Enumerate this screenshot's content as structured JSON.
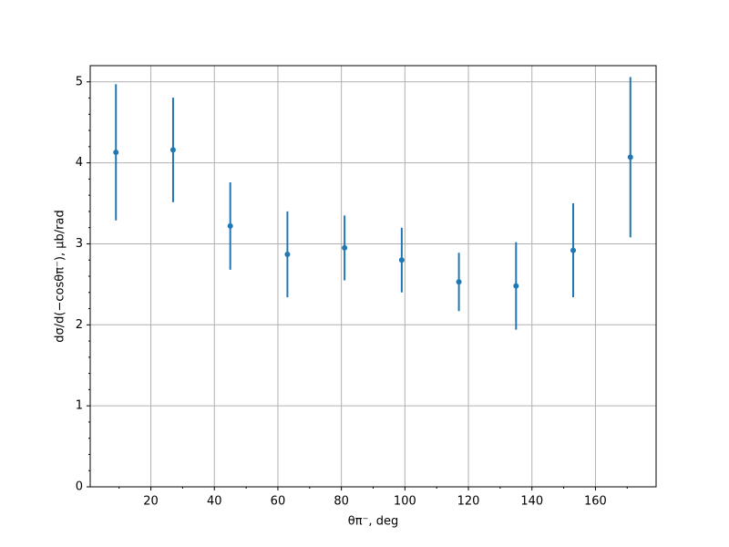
{
  "chart_data": {
    "type": "errorbar",
    "x_label": "θπ⁻, deg",
    "y_label": "dσ/d(−cosθπ⁻), μb/rad",
    "x": [
      9,
      27,
      45,
      63,
      81,
      99,
      117,
      135,
      153,
      171
    ],
    "series": [
      {
        "color": "#1f77b4",
        "values": [
          4.13,
          4.16,
          3.22,
          2.87,
          2.95,
          2.8,
          2.53,
          2.48,
          2.92,
          4.07
        ],
        "errors": [
          0.84,
          0.645,
          0.54,
          0.53,
          0.4,
          0.4,
          0.36,
          0.54,
          0.58,
          0.99
        ]
      }
    ],
    "xlim": [
      0.9,
      179.1
    ],
    "ylim": [
      0,
      5.2
    ],
    "xticks": [
      20,
      40,
      60,
      80,
      100,
      120,
      140,
      160
    ],
    "yticks": [
      0,
      1,
      2,
      3,
      4,
      5
    ],
    "xminorticks": [
      10,
      30,
      50,
      70,
      90,
      110,
      130,
      150,
      170
    ],
    "yminorticks": [
      0.2,
      0.4,
      0.6,
      0.8,
      1.2,
      1.4,
      1.6,
      1.8,
      2.2,
      2.4,
      2.6,
      2.8,
      3.2,
      3.4,
      3.6,
      3.8,
      4.2,
      4.4,
      4.6,
      4.8
    ],
    "grid": true
  }
}
